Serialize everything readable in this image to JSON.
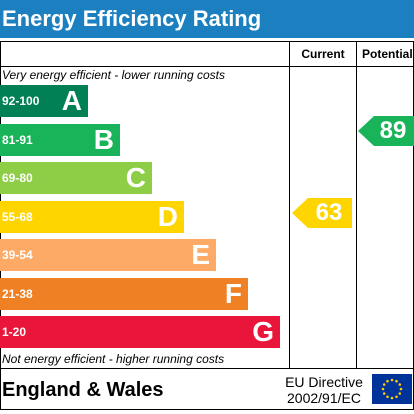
{
  "header": {
    "title": "Energy Efficiency Rating"
  },
  "columns": {
    "current": "Current",
    "potential": "Potential"
  },
  "notes": {
    "top": "Very energy efficient - lower running costs",
    "bottom": "Not energy efficient - higher running costs"
  },
  "bands": [
    {
      "range": "92-100",
      "letter": "A",
      "color": "#008054"
    },
    {
      "range": "81-91",
      "letter": "B",
      "color": "#19b459"
    },
    {
      "range": "69-80",
      "letter": "C",
      "color": "#8dce46"
    },
    {
      "range": "55-68",
      "letter": "D",
      "color": "#ffd500"
    },
    {
      "range": "39-54",
      "letter": "E",
      "color": "#fcaa65"
    },
    {
      "range": "21-38",
      "letter": "F",
      "color": "#ef8023"
    },
    {
      "range": "1-20",
      "letter": "G",
      "color": "#e9153b"
    }
  ],
  "ratings": {
    "current": {
      "value": "63",
      "color": "#ffd500"
    },
    "potential": {
      "value": "89",
      "color": "#19b459"
    }
  },
  "footer": {
    "region": "England & Wales",
    "directive_line1": "EU Directive",
    "directive_line2": "2002/91/EC",
    "flag_color": "#003399",
    "star_color": "#ffcc00"
  }
}
